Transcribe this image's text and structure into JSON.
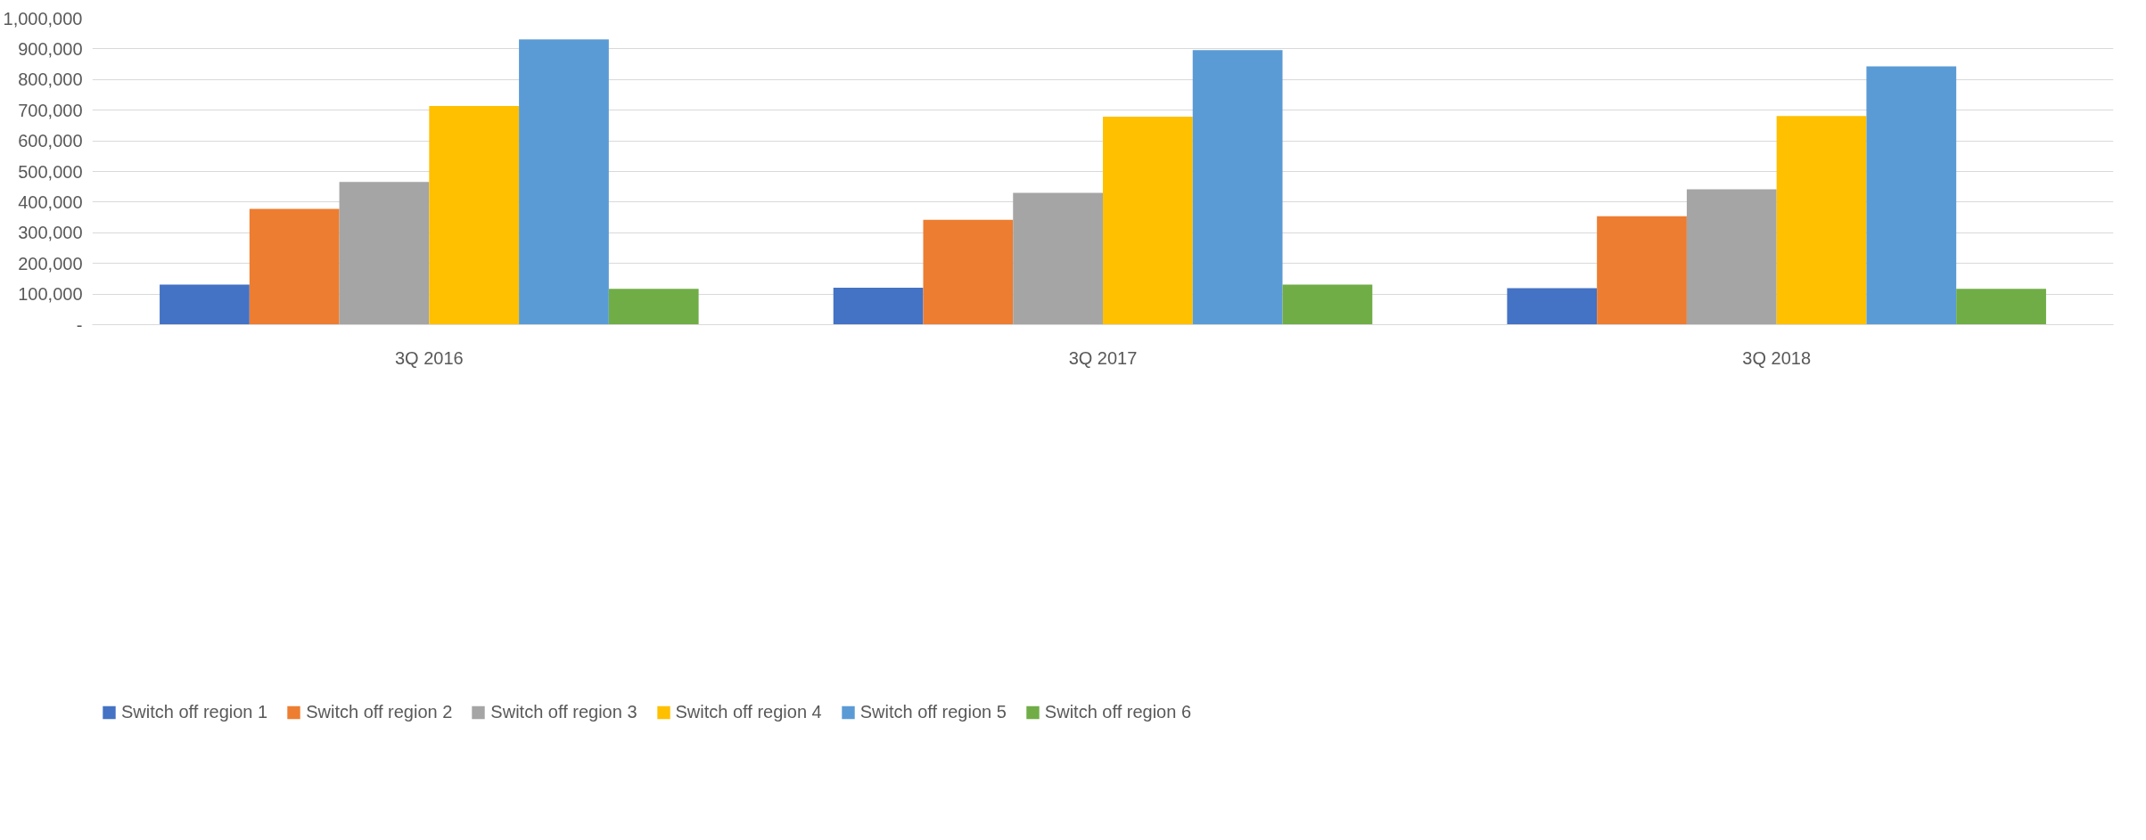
{
  "chart_data": {
    "type": "bar",
    "categories": [
      "3Q 2016",
      "3Q 2017",
      "3Q 2018"
    ],
    "series": [
      {
        "name": "Switch off region 1",
        "color": "#4472c4",
        "values": [
          131000,
          121000,
          119000
        ]
      },
      {
        "name": "Switch off region 2",
        "color": "#ed7d31",
        "values": [
          378000,
          342000,
          354000
        ]
      },
      {
        "name": "Switch off region 3",
        "color": "#a5a5a5",
        "values": [
          466000,
          430000,
          442000
        ]
      },
      {
        "name": "Switch off region 4",
        "color": "#ffc000",
        "values": [
          714000,
          679000,
          681000
        ]
      },
      {
        "name": "Switch off region 5",
        "color": "#5b9bd5",
        "values": [
          931000,
          896000,
          843000
        ]
      },
      {
        "name": "Switch off region 6",
        "color": "#70ad47",
        "values": [
          117000,
          131000,
          117000
        ]
      }
    ],
    "ylim": [
      0,
      1000000
    ],
    "yticks": [
      {
        "value": 0,
        "label": "-"
      },
      {
        "value": 100000,
        "label": "100,000"
      },
      {
        "value": 200000,
        "label": "200,000"
      },
      {
        "value": 300000,
        "label": "300,000"
      },
      {
        "value": 400000,
        "label": "400,000"
      },
      {
        "value": 500000,
        "label": "500,000"
      },
      {
        "value": 600000,
        "label": "600,000"
      },
      {
        "value": 700000,
        "label": "700,000"
      },
      {
        "value": 800000,
        "label": "800,000"
      },
      {
        "value": 900000,
        "label": "900,000"
      },
      {
        "value": 1000000,
        "label": "1,000,000"
      }
    ],
    "grid": "y",
    "legend": "bottom"
  }
}
